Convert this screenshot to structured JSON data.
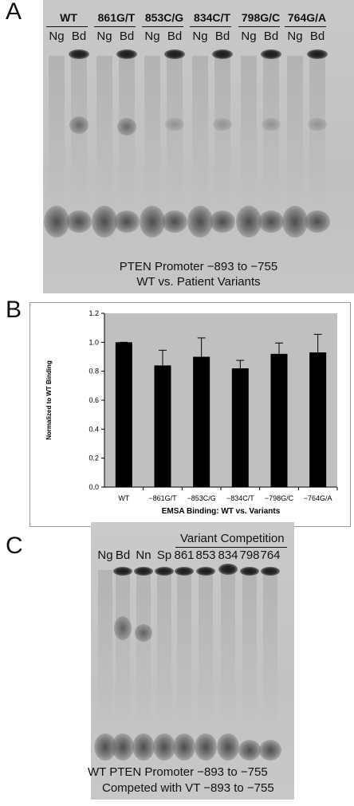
{
  "panels": {
    "a": {
      "letter": "A",
      "groups": [
        "WT",
        "861G/T",
        "853C/G",
        "834C/T",
        "798G/C",
        "764G/A"
      ],
      "lane_pair": [
        "Ng",
        "Bd"
      ],
      "caption_line1": "PTEN Promoter −893 to −755",
      "caption_line2": "WT vs. Patient Variants"
    },
    "b": {
      "letter": "B"
    },
    "c": {
      "letter": "C",
      "lanes": [
        "Ng",
        "Bd",
        "Nn",
        "Sp",
        "861",
        "853",
        "834",
        "798",
        "764"
      ],
      "competition_label": "Variant Competition",
      "caption_line1": "WT PTEN Promoter −893 to −755",
      "caption_line2": "Competed with VT −893 to −755"
    }
  },
  "chart_data": {
    "type": "bar",
    "categories": [
      "WT",
      "−861G/T",
      "−853C/G",
      "−834C/T",
      "−798G/C",
      "−764G/A"
    ],
    "values": [
      1.0,
      0.84,
      0.9,
      0.82,
      0.92,
      0.93
    ],
    "errors": [
      0.005,
      0.105,
      0.13,
      0.055,
      0.075,
      0.125
    ],
    "xlabel": "EMSA Binding: WT vs. Variants",
    "ylabel": "Normalized to WT Binding",
    "ylim": [
      0,
      1.2
    ],
    "yticks": [
      "0.0",
      "0.2",
      "0.4",
      "0.6",
      "0.8",
      "1.0",
      "1.2"
    ],
    "plot_background": "#c0c0c0",
    "bar_color": "#000000",
    "grid": false
  }
}
